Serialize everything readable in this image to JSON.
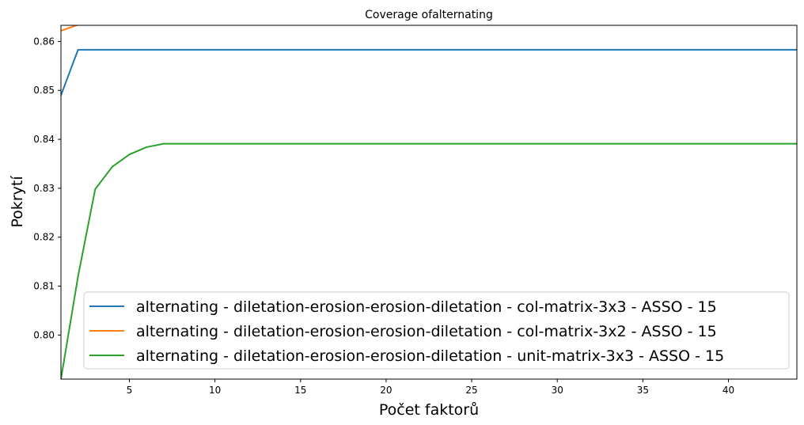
{
  "chart_data": {
    "type": "line",
    "title": "Coverage ofalternating",
    "xlabel": "Počet faktorů",
    "ylabel": "Pokrytí",
    "xlim": [
      1,
      44
    ],
    "ylim": [
      0.791,
      0.8633
    ],
    "xticks": [
      5,
      10,
      15,
      20,
      25,
      30,
      35,
      40
    ],
    "yticks": [
      0.8,
      0.81,
      0.82,
      0.83,
      0.84,
      0.85,
      0.86
    ],
    "ytick_labels": [
      "0.80",
      "0.81",
      "0.82",
      "0.83",
      "0.84",
      "0.85",
      "0.86"
    ],
    "grid": false,
    "legend_position": "lower-right",
    "series": [
      {
        "name": "alternating - diletation-erosion-erosion-diletation - col-matrix-3x3 - ASSO - 15",
        "color": "#1f77b4",
        "x": [
          1,
          2,
          3,
          44
        ],
        "y": [
          0.849,
          0.8583,
          0.8583,
          0.8583
        ]
      },
      {
        "name": "alternating - diletation-erosion-erosion-diletation - col-matrix-3x2 - ASSO - 15",
        "color": "#ff7f0e",
        "x": [
          1,
          2,
          3,
          44
        ],
        "y": [
          0.8622,
          0.8634,
          0.8634,
          0.8634
        ]
      },
      {
        "name": "alternating - diletation-erosion-erosion-diletation - unit-matrix-3x3 - ASSO - 15",
        "color": "#2ca02c",
        "x": [
          1,
          2,
          3,
          4,
          5,
          6,
          7,
          8,
          44
        ],
        "y": [
          0.791,
          0.812,
          0.8298,
          0.8344,
          0.8369,
          0.8384,
          0.8391,
          0.8391,
          0.8391
        ]
      }
    ]
  }
}
